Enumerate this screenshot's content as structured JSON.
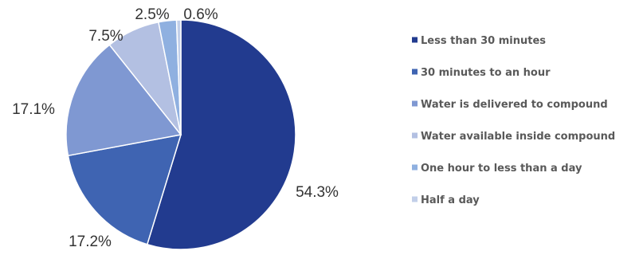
{
  "chart_data": {
    "type": "pie",
    "title": "",
    "slices": [
      {
        "label": "Less than 30 minutes",
        "value": 54.3,
        "value_label": "54.3%",
        "color": "#223b8f"
      },
      {
        "label": "30 minutes to an hour",
        "value": 17.2,
        "value_label": "17.2%",
        "color": "#3f64b2"
      },
      {
        "label": "Water is delivered to compound",
        "value": 17.1,
        "value_label": "17.1%",
        "color": "#7f98d2"
      },
      {
        "label": "Water available inside compound",
        "value": 7.5,
        "value_label": "7.5%",
        "color": "#b3c0e2"
      },
      {
        "label": "One hour to less than a day",
        "value": 2.5,
        "value_label": "2.5%",
        "color": "#8fb0e0"
      },
      {
        "label": "Half a day",
        "value": 0.6,
        "value_label": "0.6%",
        "color": "#c2cfe9"
      }
    ],
    "start_angle": "12 o'clock",
    "direction": "clockwise",
    "legend_position": "right"
  }
}
